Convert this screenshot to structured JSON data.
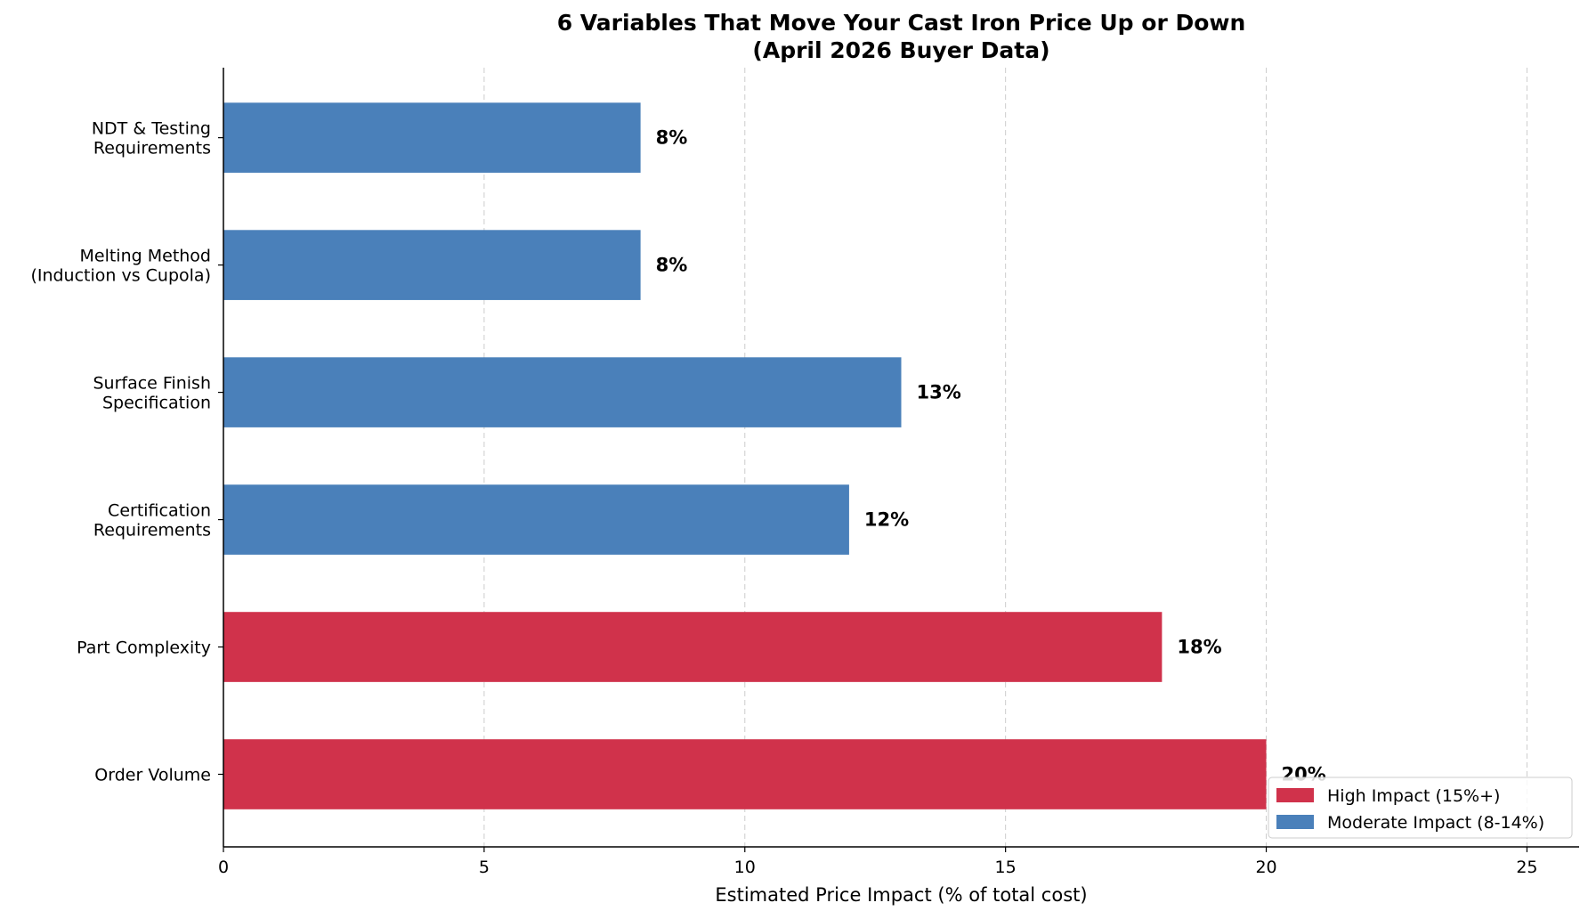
{
  "chart_data": {
    "type": "bar",
    "orientation": "horizontal",
    "title": [
      "6 Variables That Move Your Cast Iron Price Up or Down",
      "(April 2026 Buyer Data)"
    ],
    "xlabel": "Estimated Price Impact (% of total cost)",
    "ylabel": "",
    "xlim": [
      0,
      26
    ],
    "xticks": [
      0,
      5,
      10,
      15,
      20,
      25
    ],
    "grid": "x-dashed",
    "legend_position": "lower-right",
    "categories": [
      [
        "NDT & Testing",
        "Requirements"
      ],
      [
        "Melting Method",
        "(Induction vs Cupola)"
      ],
      [
        "Surface Finish",
        "Specification"
      ],
      [
        "Certification",
        "Requirements"
      ],
      [
        "Part Complexity"
      ],
      [
        "Order Volume"
      ]
    ],
    "values": [
      8,
      8,
      13,
      12,
      18,
      20
    ],
    "value_labels": [
      "8%",
      "8%",
      "13%",
      "12%",
      "18%",
      "20%"
    ],
    "groups": [
      "moderate",
      "moderate",
      "moderate",
      "moderate",
      "high",
      "high"
    ],
    "legend": [
      {
        "key": "high",
        "label": "High Impact (15%+)",
        "color": "#D0324B"
      },
      {
        "key": "moderate",
        "label": "Moderate Impact (8-14%)",
        "color": "#4A80BA"
      }
    ]
  }
}
